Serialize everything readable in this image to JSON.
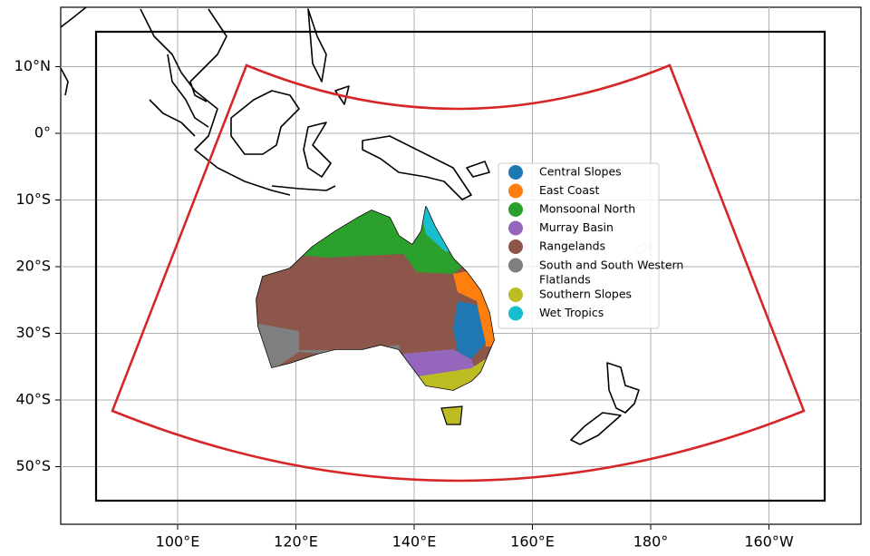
{
  "map": {
    "xticks": [
      {
        "value": 100,
        "label": "100°E"
      },
      {
        "value": 120,
        "label": "120°E"
      },
      {
        "value": 140,
        "label": "140°E"
      },
      {
        "value": 160,
        "label": "160°E"
      },
      {
        "value": 180,
        "label": "180°"
      },
      {
        "value": -160,
        "label": "160°W"
      }
    ],
    "yticks": [
      {
        "value": 10,
        "label": "10°N"
      },
      {
        "value": 0,
        "label": "0°"
      },
      {
        "value": -10,
        "label": "10°S"
      },
      {
        "value": -20,
        "label": "20°S"
      },
      {
        "value": -30,
        "label": "30°S"
      },
      {
        "value": -40,
        "label": "40°S"
      },
      {
        "value": -50,
        "label": "50°S"
      }
    ],
    "grid": true,
    "legend": [
      {
        "name": "Central Slopes",
        "color": "#1f77b4"
      },
      {
        "name": "East Coast",
        "color": "#ff7f0e"
      },
      {
        "name": "Monsoonal North",
        "color": "#2ca02c"
      },
      {
        "name": "Murray Basin",
        "color": "#9467bd"
      },
      {
        "name": "Rangelands",
        "color": "#8c564b"
      },
      {
        "name": "South and South Western Flatlands",
        "color": "#7f7f7f"
      },
      {
        "name": "Southern Slopes",
        "color": "#bcbd22"
      },
      {
        "name": "Wet Tropics",
        "color": "#17becf"
      }
    ]
  }
}
